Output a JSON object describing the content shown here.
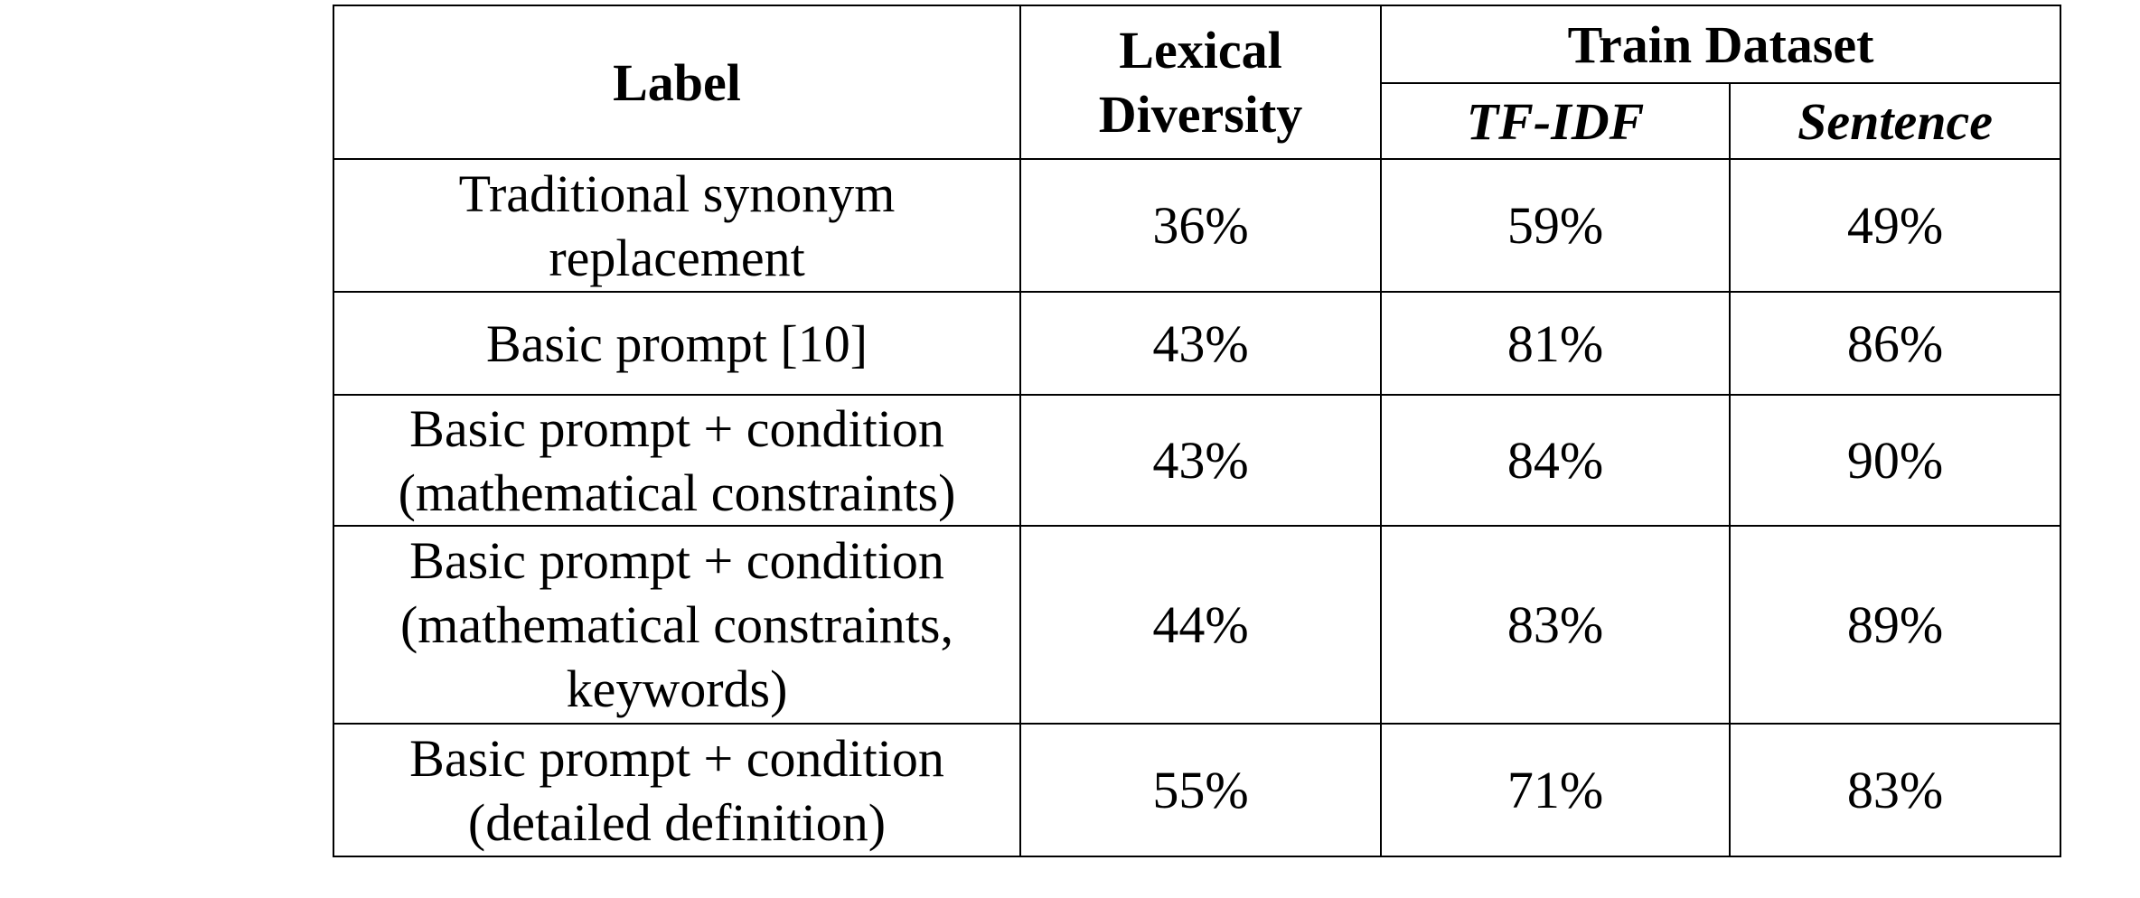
{
  "table": {
    "header": {
      "label": "Label",
      "lexical_diversity": [
        "Lexical",
        "Diversity"
      ],
      "train_dataset": "Train Dataset",
      "tfidf": "TF-IDF",
      "sentence": "Sentence"
    },
    "rows": [
      [
        [
          "Traditional synonym",
          "replacement"
        ],
        "36%",
        "59%",
        "49%"
      ],
      [
        [
          "Basic prompt [10]"
        ],
        "43%",
        "81%",
        "86%"
      ],
      [
        [
          "Basic prompt + condition",
          "(mathematical constraints)"
        ],
        "43%",
        "84%",
        "90%"
      ],
      [
        [
          "Basic prompt + condition",
          "(mathematical constraints,",
          "keywords)"
        ],
        "44%",
        "83%",
        "89%"
      ],
      [
        [
          "Basic prompt + condition",
          "(detailed definition)"
        ],
        "55%",
        "71%",
        "83%"
      ]
    ]
  }
}
